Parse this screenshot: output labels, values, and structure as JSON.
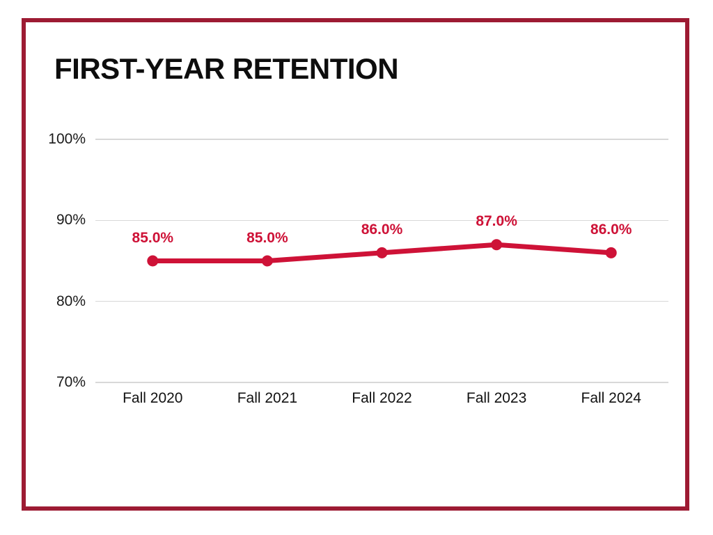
{
  "colors": {
    "frame_border": "#9D1B33",
    "series": "#CE1237",
    "gridline": "#D8D8D8",
    "title_text": "#0D0D0D",
    "axis_text": "#1A1A1A"
  },
  "chart_data": {
    "type": "line",
    "title": "FIRST-YEAR RETENTION",
    "categories": [
      "Fall 2020",
      "Fall 2021",
      "Fall 2022",
      "Fall 2023",
      "Fall 2024"
    ],
    "values": [
      85.0,
      85.0,
      86.0,
      87.0,
      86.0
    ],
    "point_labels": [
      "85.0%",
      "85.0%",
      "86.0%",
      "87.0%",
      "86.0%"
    ],
    "xlabel": "",
    "ylabel": "",
    "ylim": [
      70,
      100
    ],
    "yticks": [
      100,
      90,
      80,
      70
    ],
    "ytick_labels": [
      "100%",
      "90%",
      "80%",
      "70%"
    ],
    "grid": "horizontal",
    "legend": "none",
    "series_color": "#CE1237",
    "marker": "circle"
  }
}
